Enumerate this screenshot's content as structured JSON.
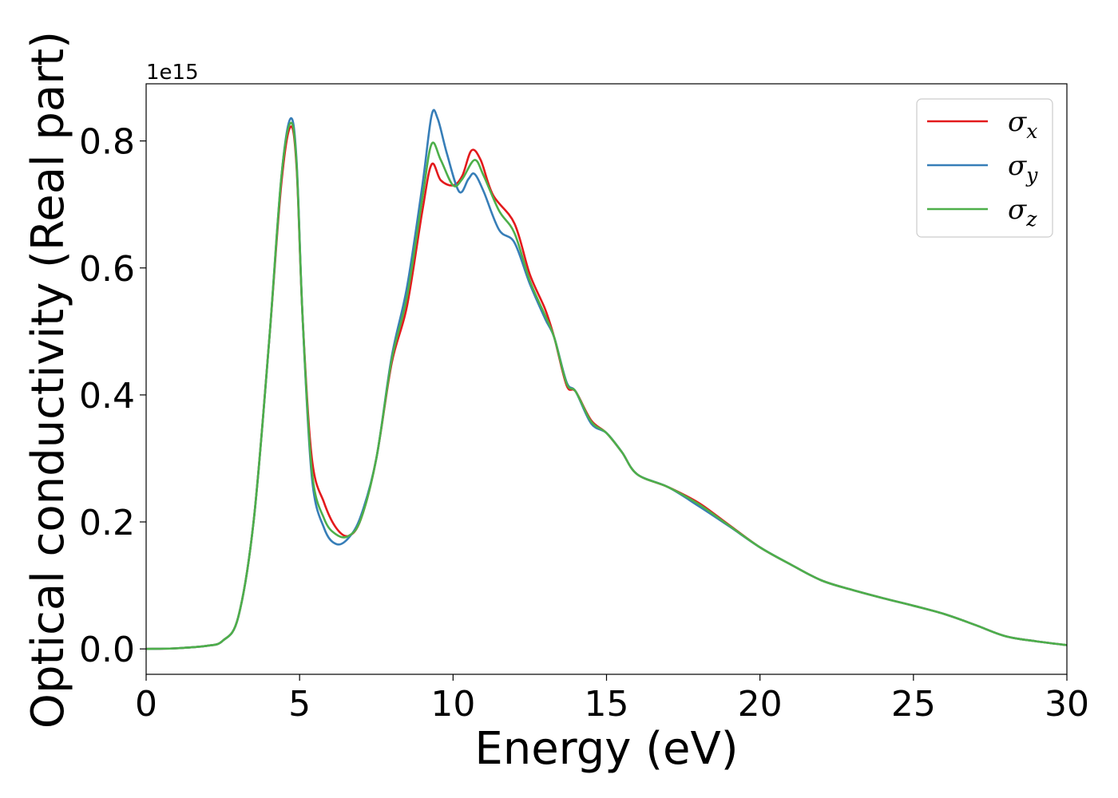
{
  "chart_data": {
    "type": "line",
    "xlabel": "Energy (eV)",
    "ylabel": "Optical conductivity (Real part)",
    "y_offset_text": "1e15",
    "y_scale": 1000000000000000.0,
    "xlim": [
      0,
      30
    ],
    "ylim": [
      -0.04,
      0.89
    ],
    "x_ticks": [
      0,
      5,
      10,
      15,
      20,
      25,
      30
    ],
    "y_ticks": [
      0.0,
      0.2,
      0.4,
      0.6,
      0.8
    ],
    "y_tick_labels": [
      "0.0",
      "0.2",
      "0.4",
      "0.6",
      "0.8"
    ],
    "grid": false,
    "legend_position": "top-right",
    "series": [
      {
        "name": "σx",
        "symbol": "σ",
        "subscript": "x",
        "color": "#e31a1c",
        "points": [
          [
            0,
            0
          ],
          [
            1,
            0.001
          ],
          [
            2,
            0.005
          ],
          [
            2.5,
            0.013
          ],
          [
            3,
            0.05
          ],
          [
            3.5,
            0.2
          ],
          [
            4,
            0.48
          ],
          [
            4.4,
            0.73
          ],
          [
            4.7,
            0.822
          ],
          [
            4.9,
            0.76
          ],
          [
            5.1,
            0.52
          ],
          [
            5.4,
            0.3
          ],
          [
            5.8,
            0.23
          ],
          [
            6.2,
            0.19
          ],
          [
            6.6,
            0.178
          ],
          [
            7,
            0.205
          ],
          [
            7.5,
            0.3
          ],
          [
            8,
            0.45
          ],
          [
            8.5,
            0.54
          ],
          [
            9,
            0.69
          ],
          [
            9.3,
            0.763
          ],
          [
            9.6,
            0.738
          ],
          [
            10,
            0.73
          ],
          [
            10.3,
            0.745
          ],
          [
            10.6,
            0.785
          ],
          [
            10.9,
            0.77
          ],
          [
            11.3,
            0.715
          ],
          [
            12,
            0.67
          ],
          [
            12.5,
            0.59
          ],
          [
            13,
            0.535
          ],
          [
            13.3,
            0.49
          ],
          [
            13.7,
            0.415
          ],
          [
            14,
            0.405
          ],
          [
            14.5,
            0.36
          ],
          [
            15,
            0.34
          ],
          [
            15.5,
            0.31
          ],
          [
            16,
            0.275
          ],
          [
            17,
            0.255
          ],
          [
            18,
            0.23
          ],
          [
            19,
            0.195
          ],
          [
            20,
            0.16
          ],
          [
            21,
            0.133
          ],
          [
            22,
            0.108
          ],
          [
            23,
            0.093
          ],
          [
            24,
            0.08
          ],
          [
            25,
            0.068
          ],
          [
            26,
            0.055
          ],
          [
            27,
            0.038
          ],
          [
            28,
            0.02
          ],
          [
            29,
            0.012
          ],
          [
            30,
            0.006
          ]
        ]
      },
      {
        "name": "σy",
        "symbol": "σ",
        "subscript": "y",
        "color": "#377eb8",
        "points": [
          [
            0,
            0
          ],
          [
            1,
            0.001
          ],
          [
            2,
            0.005
          ],
          [
            2.5,
            0.013
          ],
          [
            3,
            0.05
          ],
          [
            3.5,
            0.2
          ],
          [
            4,
            0.48
          ],
          [
            4.4,
            0.74
          ],
          [
            4.7,
            0.835
          ],
          [
            4.9,
            0.77
          ],
          [
            5.1,
            0.52
          ],
          [
            5.4,
            0.27
          ],
          [
            5.8,
            0.19
          ],
          [
            6.2,
            0.165
          ],
          [
            6.6,
            0.175
          ],
          [
            7,
            0.21
          ],
          [
            7.5,
            0.3
          ],
          [
            8,
            0.46
          ],
          [
            8.5,
            0.57
          ],
          [
            9,
            0.73
          ],
          [
            9.3,
            0.84
          ],
          [
            9.5,
            0.835
          ],
          [
            9.8,
            0.78
          ],
          [
            10.2,
            0.72
          ],
          [
            10.5,
            0.74
          ],
          [
            10.7,
            0.748
          ],
          [
            11,
            0.72
          ],
          [
            11.5,
            0.66
          ],
          [
            12,
            0.64
          ],
          [
            12.5,
            0.575
          ],
          [
            13,
            0.52
          ],
          [
            13.3,
            0.49
          ],
          [
            13.7,
            0.42
          ],
          [
            14,
            0.405
          ],
          [
            14.5,
            0.355
          ],
          [
            15,
            0.34
          ],
          [
            15.5,
            0.31
          ],
          [
            16,
            0.275
          ],
          [
            17,
            0.255
          ],
          [
            18,
            0.225
          ],
          [
            19,
            0.193
          ],
          [
            20,
            0.16
          ],
          [
            21,
            0.133
          ],
          [
            22,
            0.108
          ],
          [
            23,
            0.093
          ],
          [
            24,
            0.08
          ],
          [
            25,
            0.068
          ],
          [
            26,
            0.055
          ],
          [
            27,
            0.038
          ],
          [
            28,
            0.02
          ],
          [
            29,
            0.012
          ],
          [
            30,
            0.006
          ]
        ]
      },
      {
        "name": "σz",
        "symbol": "σ",
        "subscript": "z",
        "color": "#4daf4a",
        "points": [
          [
            0,
            0
          ],
          [
            1,
            0.001
          ],
          [
            2,
            0.005
          ],
          [
            2.5,
            0.013
          ],
          [
            3,
            0.05
          ],
          [
            3.5,
            0.2
          ],
          [
            4,
            0.48
          ],
          [
            4.4,
            0.74
          ],
          [
            4.7,
            0.828
          ],
          [
            4.9,
            0.765
          ],
          [
            5.1,
            0.52
          ],
          [
            5.4,
            0.28
          ],
          [
            5.8,
            0.205
          ],
          [
            6.2,
            0.18
          ],
          [
            6.6,
            0.178
          ],
          [
            7,
            0.205
          ],
          [
            7.5,
            0.3
          ],
          [
            8,
            0.455
          ],
          [
            8.5,
            0.555
          ],
          [
            9,
            0.71
          ],
          [
            9.3,
            0.795
          ],
          [
            9.6,
            0.77
          ],
          [
            10,
            0.73
          ],
          [
            10.3,
            0.74
          ],
          [
            10.7,
            0.77
          ],
          [
            11,
            0.745
          ],
          [
            11.5,
            0.69
          ],
          [
            12,
            0.655
          ],
          [
            12.5,
            0.58
          ],
          [
            13,
            0.525
          ],
          [
            13.3,
            0.49
          ],
          [
            13.7,
            0.418
          ],
          [
            14,
            0.405
          ],
          [
            14.5,
            0.358
          ],
          [
            15,
            0.34
          ],
          [
            15.5,
            0.31
          ],
          [
            16,
            0.275
          ],
          [
            17,
            0.255
          ],
          [
            18,
            0.228
          ],
          [
            19,
            0.194
          ],
          [
            20,
            0.16
          ],
          [
            21,
            0.133
          ],
          [
            22,
            0.108
          ],
          [
            23,
            0.093
          ],
          [
            24,
            0.08
          ],
          [
            25,
            0.068
          ],
          [
            26,
            0.055
          ],
          [
            27,
            0.038
          ],
          [
            28,
            0.02
          ],
          [
            29,
            0.012
          ],
          [
            30,
            0.006
          ]
        ]
      }
    ]
  }
}
